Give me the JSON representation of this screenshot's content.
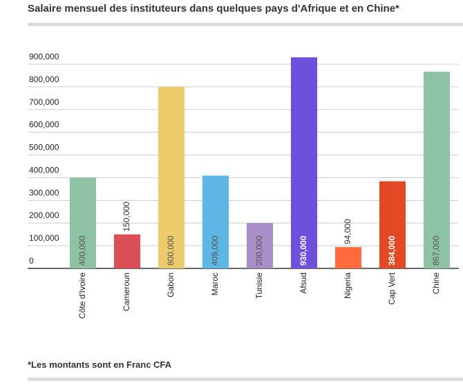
{
  "chart_data": {
    "type": "bar",
    "title": "Salaire mensuel des instituteurs dans quelques pays d'Afrique et en Chine*",
    "note": "*Les montants sont en Franc CFA",
    "categories": [
      "Côte d'Ivoire",
      "Cameroun",
      "Gabon",
      "Maroc",
      "Tunisie",
      "Afsud",
      "Nigeria",
      "Cap Vert",
      "Chine"
    ],
    "values": [
      400000,
      150000,
      800000,
      409000,
      200000,
      930000,
      94000,
      384000,
      867000
    ],
    "value_labels": [
      "400,000",
      "150,000",
      "800,000",
      "409,000",
      "200,000",
      "930,000",
      "94,000",
      "384,000",
      "867,000"
    ],
    "colors": [
      "#8dc3a4",
      "#dc4e55",
      "#eecb6a",
      "#5db6e6",
      "#a88dc8",
      "#6d50dc",
      "#ff6b3a",
      "#e24a25",
      "#8dc3a4"
    ],
    "ylim": [
      0,
      900000
    ],
    "yticks": [
      0,
      {
        "value": 100000,
        "label": "100,000"
      },
      {
        "value": 200000,
        "label": "200,000"
      },
      {
        "value": 300000,
        "label": "300,000"
      },
      {
        "value": 400000,
        "label": "400,000"
      },
      {
        "value": 500000,
        "label": "500,000"
      },
      {
        "value": 600000,
        "label": "600,000"
      },
      {
        "value": 700000,
        "label": "700,000"
      },
      {
        "value": 800000,
        "label": "800,000"
      },
      {
        "value": 900000,
        "label": "900,000"
      }
    ],
    "grid": true
  }
}
